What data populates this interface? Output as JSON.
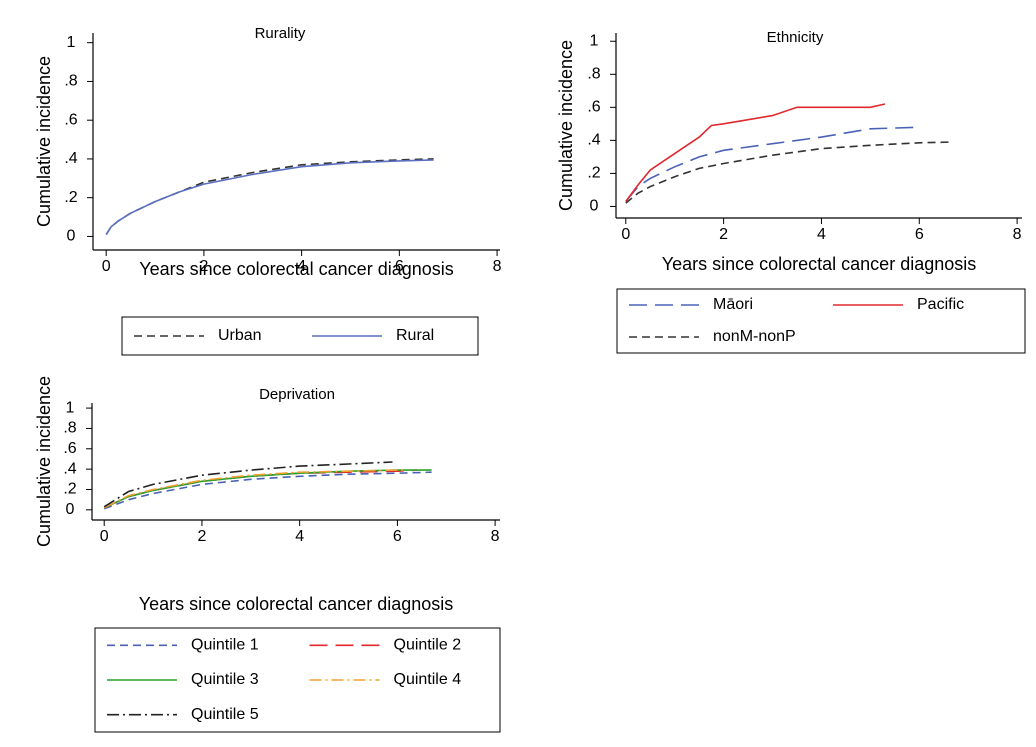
{
  "chart_data": [
    {
      "type": "line",
      "title": "Rurality",
      "xlabel": "Years since colorectal cancer diagnosis",
      "ylabel": "Cumulative incidence",
      "xlim": [
        -0.27,
        8.06
      ],
      "ylim": [
        -0.07,
        1.05
      ],
      "xticks": [
        0,
        2,
        4,
        6,
        8
      ],
      "yticks": [
        0,
        {
          "value": 0.2,
          "label": ".2"
        },
        {
          "value": 0.4,
          "label": ".4"
        },
        {
          "value": 0.6,
          "label": ".6"
        },
        {
          "value": 0.8,
          "label": ".8"
        },
        1
      ],
      "series": [
        {
          "name": "Urban",
          "color": "#333333",
          "dash": "dashed",
          "x": [
            0,
            0.1,
            0.25,
            0.5,
            1,
            1.5,
            2,
            3,
            4,
            5,
            6,
            6.7
          ],
          "values": [
            0.01,
            0.05,
            0.08,
            0.12,
            0.18,
            0.23,
            0.28,
            0.33,
            0.37,
            0.385,
            0.395,
            0.4
          ]
        },
        {
          "name": "Rural",
          "color": "#5a6fbf",
          "dash": "solid",
          "x": [
            0,
            0.1,
            0.25,
            0.5,
            1,
            1.5,
            2,
            3,
            4,
            5,
            6,
            6.7
          ],
          "values": [
            0.01,
            0.05,
            0.08,
            0.12,
            0.18,
            0.23,
            0.27,
            0.32,
            0.36,
            0.38,
            0.39,
            0.395
          ]
        }
      ]
    },
    {
      "type": "line",
      "title": "Ethnicity",
      "xlabel": "Years since colorectal cancer diagnosis",
      "ylabel": "Cumulative incidence",
      "xlim": [
        -0.2,
        8.1
      ],
      "ylim": [
        -0.07,
        1.05
      ],
      "xticks": [
        0,
        2,
        4,
        6,
        8
      ],
      "yticks": [
        0,
        {
          "value": 0.2,
          "label": ".2"
        },
        {
          "value": 0.4,
          "label": ".4"
        },
        {
          "value": 0.6,
          "label": ".6"
        },
        {
          "value": 0.8,
          "label": ".8"
        },
        1
      ],
      "series": [
        {
          "name": "Māori",
          "color": "#4a62b5",
          "dash": "longdash",
          "x": [
            0,
            0.25,
            0.5,
            1,
            1.5,
            2,
            3,
            4,
            5,
            6
          ],
          "values": [
            0.03,
            0.12,
            0.17,
            0.24,
            0.3,
            0.34,
            0.38,
            0.42,
            0.47,
            0.48
          ]
        },
        {
          "name": "Pacific",
          "color": "#e0282e",
          "dash": "solid",
          "x": [
            0,
            0.25,
            0.5,
            1,
            1.5,
            1.75,
            2,
            3,
            3.5,
            4,
            5,
            5.3
          ],
          "values": [
            0.03,
            0.13,
            0.22,
            0.32,
            0.42,
            0.49,
            0.5,
            0.55,
            0.6,
            0.6,
            0.6,
            0.62
          ]
        },
        {
          "name": "nonM-nonP",
          "color": "#333333",
          "dash": "dashed",
          "x": [
            0,
            0.25,
            0.5,
            1,
            1.5,
            2,
            3,
            4,
            5,
            6,
            6.7
          ],
          "values": [
            0.02,
            0.08,
            0.12,
            0.18,
            0.23,
            0.26,
            0.31,
            0.35,
            0.37,
            0.385,
            0.39
          ]
        }
      ]
    },
    {
      "type": "line",
      "title": "Deprivation",
      "xlabel": "Years since colorectal cancer diagnosis",
      "ylabel": "Cumulative incidence",
      "xlim": [
        -0.25,
        8.1
      ],
      "ylim": [
        -0.1,
        1.05
      ],
      "xticks": [
        0,
        2,
        4,
        6,
        8
      ],
      "yticks": [
        0,
        {
          "value": 0.2,
          "label": ".2"
        },
        {
          "value": 0.4,
          "label": ".4"
        },
        {
          "value": 0.6,
          "label": ".6"
        },
        {
          "value": 0.8,
          "label": ".8"
        },
        1
      ],
      "series": [
        {
          "name": "Quintile 1",
          "color": "#4a62b5",
          "dash": "dashed",
          "x": [
            0,
            0.5,
            1,
            2,
            3,
            4,
            5,
            6,
            6.7
          ],
          "values": [
            0.01,
            0.1,
            0.16,
            0.25,
            0.3,
            0.33,
            0.35,
            0.36,
            0.37
          ]
        },
        {
          "name": "Quintile 2",
          "color": "#e0282e",
          "dash": "longdash",
          "x": [
            0,
            0.5,
            1,
            2,
            3,
            4,
            5,
            6,
            6.4
          ],
          "values": [
            0.02,
            0.13,
            0.19,
            0.28,
            0.33,
            0.36,
            0.37,
            0.38,
            0.39
          ]
        },
        {
          "name": "Quintile 3",
          "color": "#2ca02c",
          "dash": "solid",
          "x": [
            0,
            0.5,
            1,
            2,
            3,
            4,
            5,
            6,
            6.7
          ],
          "values": [
            0.02,
            0.13,
            0.19,
            0.28,
            0.33,
            0.36,
            0.38,
            0.39,
            0.39
          ]
        },
        {
          "name": "Quintile 4",
          "color": "#f0a030",
          "dash": "dashdot",
          "x": [
            0,
            0.5,
            1,
            2,
            3,
            4,
            5,
            6,
            6.2
          ],
          "values": [
            0.02,
            0.14,
            0.2,
            0.29,
            0.34,
            0.37,
            0.38,
            0.39,
            0.39
          ]
        },
        {
          "name": "Quintile 5",
          "color": "#222222",
          "dash": "dashdot",
          "x": [
            0,
            0.5,
            1,
            2,
            3,
            4,
            5,
            5.9
          ],
          "values": [
            0.03,
            0.18,
            0.25,
            0.34,
            0.39,
            0.43,
            0.45,
            0.47
          ]
        }
      ]
    }
  ]
}
